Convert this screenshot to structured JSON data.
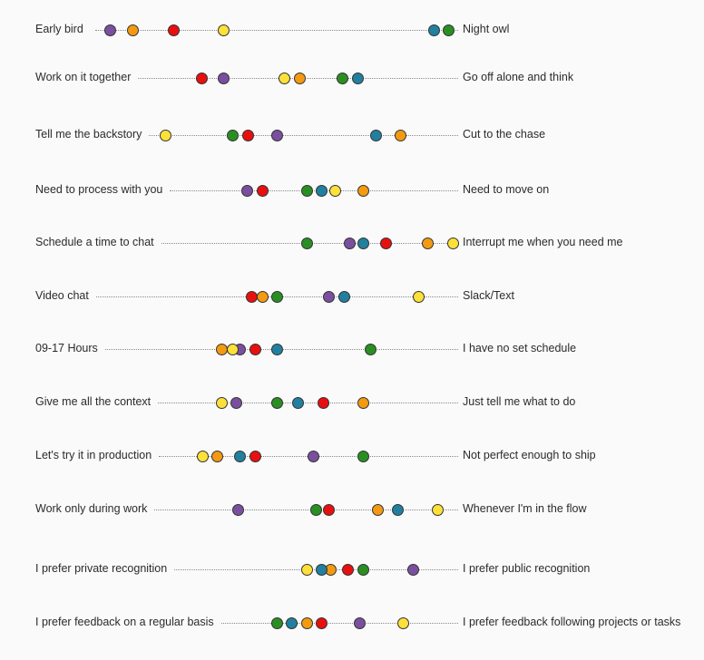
{
  "chart_data": {
    "type": "scatter",
    "title": "",
    "scale": [
      0,
      100
    ],
    "rows": [
      {
        "left": "Early bird",
        "right": "Night owl"
      },
      {
        "left": "Work on it together",
        "right": "Go off alone and think"
      },
      {
        "left": "Tell me the backstory",
        "right": "Cut to the chase"
      },
      {
        "left": "Need to process with you",
        "right": "Need to move on"
      },
      {
        "left": "Schedule a time to chat",
        "right": "Interrupt me when you need me"
      },
      {
        "left": "Video chat",
        "right": "Slack/Text"
      },
      {
        "left": "09-17 Hours",
        "right": "I have no set schedule"
      },
      {
        "left": "Give me all the context",
        "right": "Just tell me what to do"
      },
      {
        "left": "Let's try it in production",
        "right": "Not perfect enough to ship"
      },
      {
        "left": "Work only during work",
        "right": "Whenever I'm in the flow"
      },
      {
        "left": "I prefer private recognition",
        "right": "I prefer public recognition"
      },
      {
        "left": "I prefer feedback on a regular basis",
        "right": "I prefer feedback following projects or tasks"
      }
    ],
    "series": [
      {
        "name": "purple",
        "color": "#7b4fa0",
        "values": [
          4,
          35.25,
          50,
          41.75,
          70,
          64.25,
          39.75,
          38.75,
          60,
          39.25,
          87.5,
          72.75
        ]
      },
      {
        "name": "orange",
        "color": "#f39a12",
        "values": [
          10.25,
          56.25,
          84,
          73.75,
          91.5,
          46,
          34.75,
          73.75,
          33.5,
          77.75,
          64.75,
          58.25
        ]
      },
      {
        "name": "red",
        "color": "#e8100f",
        "values": [
          21.5,
          29.25,
          42,
          46,
          80,
          43,
          44,
          62.75,
          44,
          64.25,
          69.5,
          62.25
        ]
      },
      {
        "name": "yellow",
        "color": "#fde03a",
        "values": [
          35.25,
          52,
          19.25,
          66,
          98.5,
          89,
          37.75,
          34.75,
          29.5,
          94.25,
          58.25,
          84.75
        ]
      },
      {
        "name": "teal",
        "color": "#21809f",
        "values": [
          93.25,
          72.25,
          77.25,
          62.25,
          73.75,
          68.5,
          50,
          55.75,
          39.75,
          83.25,
          62.25,
          54
        ]
      },
      {
        "name": "green",
        "color": "#2a8f23",
        "values": [
          97.25,
          68,
          37.75,
          58.25,
          58.25,
          50,
          75.75,
          50,
          73.75,
          60.75,
          73.75,
          50
        ]
      }
    ]
  }
}
